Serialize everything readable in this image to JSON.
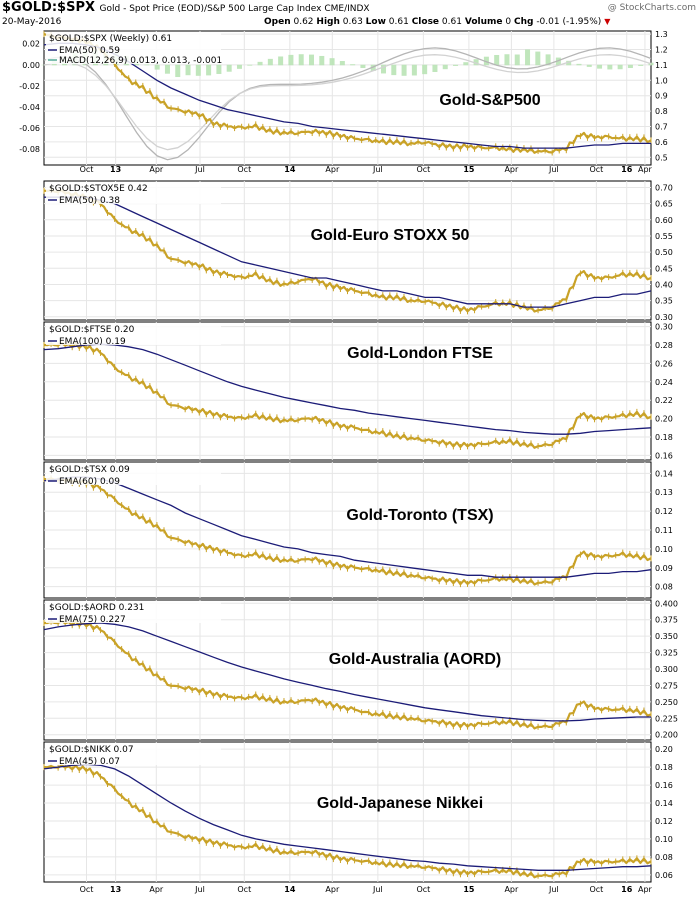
{
  "header": {
    "symbol": "$GOLD:$SPX",
    "description": "Gold - Spot Price (EOD)/S&P 500 Large Cap Index  CME/INDX",
    "date": "20-May-2016",
    "open_label": "Open",
    "open": "0.62",
    "high_label": "High",
    "high": "0.63",
    "low_label": "Low",
    "low": "0.61",
    "close_label": "Close",
    "close": "0.61",
    "volume_label": "Volume",
    "volume": "0",
    "chg_label": "Chg",
    "chg": "-0.01 (-1.95%)",
    "brand": "@ StockCharts.com"
  },
  "colors": {
    "price": "#c9a227",
    "ema": "#1c1c78",
    "macd_hist": "#b9e3b5",
    "macd_line": "#b5b5b5",
    "macd_signal": "#d2d2d2",
    "grid": "#e6e6e6"
  },
  "chart_data": {
    "type": "multi-panel-line",
    "x_tick_labels": [
      "Oct",
      "13",
      "Apr",
      "Jul",
      "Oct",
      "14",
      "Apr",
      "Jul",
      "Oct",
      "15",
      "Apr",
      "Jul",
      "Oct",
      "16",
      "Apr"
    ],
    "x_year_labels": [
      "13",
      "14",
      "15",
      "16"
    ],
    "panels": [
      {
        "name": "spx",
        "label": "$GOLD:$SPX (Weekly) 0.61",
        "ema_label": "EMA(50) 0.59",
        "macd_label": "MACD(12,26,9) 0.013, 0.013, -0.001",
        "title": "Gold-S&P500",
        "ylim": [
          0.45,
          1.32
        ],
        "right_ticks": [
          "1.3",
          "1.2",
          "1.1",
          "1.0",
          "0.9",
          "0.8",
          "0.7",
          "0.6",
          "0.5"
        ],
        "left_ticks": [
          "0.02",
          "0.00",
          "-0.02",
          "-0.04",
          "-0.06",
          "-0.08"
        ],
        "macd_ylim": [
          -0.095,
          0.032
        ],
        "price": [
          1.3,
          1.28,
          1.27,
          1.25,
          1.2,
          1.1,
          1.0,
          0.95,
          0.88,
          0.82,
          0.8,
          0.78,
          0.72,
          0.7,
          0.69,
          0.7,
          0.67,
          0.66,
          0.66,
          0.67,
          0.66,
          0.64,
          0.62,
          0.61,
          0.6,
          0.6,
          0.59,
          0.6,
          0.58,
          0.57,
          0.57,
          0.56,
          0.56,
          0.55,
          0.55,
          0.54,
          0.54,
          0.56,
          0.65,
          0.63,
          0.63,
          0.62,
          0.62,
          0.61
        ],
        "ema": [
          1.23,
          1.24,
          1.24,
          1.23,
          1.21,
          1.17,
          1.12,
          1.06,
          1.0,
          0.95,
          0.91,
          0.87,
          0.84,
          0.81,
          0.79,
          0.77,
          0.75,
          0.73,
          0.72,
          0.7,
          0.69,
          0.68,
          0.67,
          0.66,
          0.65,
          0.64,
          0.63,
          0.62,
          0.61,
          0.6,
          0.59,
          0.58,
          0.57,
          0.57,
          0.56,
          0.56,
          0.56,
          0.56,
          0.57,
          0.58,
          0.58,
          0.59,
          0.59,
          0.59
        ]
      },
      {
        "name": "stoxx",
        "label": "$GOLD:$STOX5E 0.42",
        "ema_label": "EMA(50) 0.38",
        "title": "Gold-Euro STOXX 50",
        "ylim": [
          0.29,
          0.72
        ],
        "right_ticks": [
          "0.70",
          "0.65",
          "0.60",
          "0.55",
          "0.50",
          "0.45",
          "0.40",
          "0.35",
          "0.30"
        ],
        "price": [
          0.69,
          0.69,
          0.68,
          0.67,
          0.65,
          0.6,
          0.57,
          0.55,
          0.52,
          0.48,
          0.47,
          0.46,
          0.44,
          0.43,
          0.42,
          0.43,
          0.41,
          0.4,
          0.41,
          0.42,
          0.4,
          0.39,
          0.38,
          0.37,
          0.36,
          0.36,
          0.35,
          0.35,
          0.34,
          0.33,
          0.32,
          0.33,
          0.34,
          0.34,
          0.33,
          0.32,
          0.33,
          0.36,
          0.44,
          0.42,
          0.42,
          0.43,
          0.43,
          0.42
        ],
        "ema": [
          0.67,
          0.67,
          0.67,
          0.67,
          0.66,
          0.65,
          0.63,
          0.61,
          0.59,
          0.57,
          0.55,
          0.53,
          0.51,
          0.49,
          0.47,
          0.46,
          0.45,
          0.44,
          0.43,
          0.42,
          0.42,
          0.41,
          0.4,
          0.39,
          0.38,
          0.38,
          0.37,
          0.36,
          0.36,
          0.35,
          0.34,
          0.34,
          0.34,
          0.34,
          0.33,
          0.33,
          0.33,
          0.34,
          0.35,
          0.36,
          0.36,
          0.37,
          0.37,
          0.38
        ]
      },
      {
        "name": "ftse",
        "label": "$GOLD:$FTSE 0.20",
        "ema_label": "EMA(100) 0.19",
        "title": "Gold-London FTSE",
        "ylim": [
          0.155,
          0.305
        ],
        "right_ticks": [
          "0.30",
          "0.28",
          "0.26",
          "0.24",
          "0.22",
          "0.20",
          "0.18",
          "0.16"
        ],
        "price": [
          0.28,
          0.281,
          0.28,
          0.278,
          0.272,
          0.255,
          0.245,
          0.238,
          0.228,
          0.215,
          0.212,
          0.209,
          0.205,
          0.202,
          0.2,
          0.203,
          0.2,
          0.198,
          0.199,
          0.201,
          0.197,
          0.192,
          0.19,
          0.186,
          0.184,
          0.181,
          0.179,
          0.177,
          0.175,
          0.172,
          0.171,
          0.172,
          0.174,
          0.175,
          0.172,
          0.17,
          0.173,
          0.18,
          0.205,
          0.2,
          0.201,
          0.203,
          0.205,
          0.202
        ],
        "ema": [
          0.275,
          0.276,
          0.278,
          0.28,
          0.281,
          0.28,
          0.278,
          0.275,
          0.27,
          0.264,
          0.258,
          0.252,
          0.246,
          0.24,
          0.235,
          0.231,
          0.227,
          0.223,
          0.22,
          0.217,
          0.214,
          0.211,
          0.209,
          0.206,
          0.204,
          0.202,
          0.2,
          0.198,
          0.196,
          0.194,
          0.192,
          0.19,
          0.188,
          0.187,
          0.185,
          0.184,
          0.183,
          0.183,
          0.184,
          0.186,
          0.187,
          0.188,
          0.189,
          0.19
        ]
      },
      {
        "name": "tsx",
        "label": "$GOLD:$TSX 0.09",
        "ema_label": "EMA(60) 0.09",
        "title": "Gold-Toronto (TSX)",
        "ylim": [
          0.074,
          0.146
        ],
        "right_ticks": [
          "0.14",
          "0.13",
          "0.12",
          "0.11",
          "0.10",
          "0.09",
          "0.08"
        ],
        "price": [
          0.137,
          0.137,
          0.136,
          0.135,
          0.132,
          0.126,
          0.12,
          0.116,
          0.112,
          0.106,
          0.104,
          0.102,
          0.1,
          0.098,
          0.096,
          0.097,
          0.095,
          0.094,
          0.094,
          0.095,
          0.093,
          0.091,
          0.09,
          0.089,
          0.088,
          0.087,
          0.086,
          0.085,
          0.084,
          0.083,
          0.082,
          0.083,
          0.084,
          0.084,
          0.083,
          0.082,
          0.083,
          0.086,
          0.098,
          0.096,
          0.096,
          0.097,
          0.096,
          0.095
        ],
        "ema": [
          0.136,
          0.137,
          0.138,
          0.138,
          0.137,
          0.135,
          0.132,
          0.129,
          0.126,
          0.123,
          0.119,
          0.116,
          0.113,
          0.11,
          0.107,
          0.105,
          0.103,
          0.101,
          0.1,
          0.098,
          0.097,
          0.096,
          0.094,
          0.093,
          0.092,
          0.091,
          0.09,
          0.089,
          0.088,
          0.087,
          0.086,
          0.086,
          0.085,
          0.085,
          0.085,
          0.085,
          0.085,
          0.085,
          0.086,
          0.087,
          0.087,
          0.088,
          0.088,
          0.089
        ]
      },
      {
        "name": "aord",
        "label": "$GOLD:$AORD 0.231",
        "ema_label": "EMA(75) 0.227",
        "title": "Gold-Australia (AORD)",
        "ylim": [
          0.192,
          0.405
        ],
        "right_ticks": [
          "0.400",
          "0.375",
          "0.350",
          "0.325",
          "0.300",
          "0.275",
          "0.250",
          "0.225",
          "0.200"
        ],
        "price": [
          0.37,
          0.372,
          0.37,
          0.368,
          0.36,
          0.34,
          0.32,
          0.305,
          0.29,
          0.275,
          0.272,
          0.268,
          0.262,
          0.258,
          0.255,
          0.258,
          0.253,
          0.25,
          0.251,
          0.254,
          0.248,
          0.242,
          0.238,
          0.232,
          0.23,
          0.227,
          0.225,
          0.222,
          0.22,
          0.216,
          0.214,
          0.216,
          0.218,
          0.219,
          0.215,
          0.212,
          0.214,
          0.222,
          0.25,
          0.24,
          0.238,
          0.238,
          0.236,
          0.231
        ],
        "ema": [
          0.36,
          0.364,
          0.367,
          0.369,
          0.37,
          0.368,
          0.364,
          0.358,
          0.35,
          0.342,
          0.334,
          0.326,
          0.318,
          0.31,
          0.303,
          0.297,
          0.291,
          0.285,
          0.28,
          0.275,
          0.27,
          0.266,
          0.261,
          0.257,
          0.253,
          0.249,
          0.245,
          0.241,
          0.238,
          0.235,
          0.232,
          0.229,
          0.227,
          0.225,
          0.223,
          0.222,
          0.221,
          0.221,
          0.222,
          0.224,
          0.225,
          0.226,
          0.227,
          0.227
        ]
      },
      {
        "name": "nikk",
        "label": "$GOLD:$NIKK 0.07",
        "ema_label": "EMA(45) 0.07",
        "title": "Gold-Japanese Nikkei",
        "ylim": [
          0.052,
          0.208
        ],
        "right_ticks": [
          "0.20",
          "0.18",
          "0.16",
          "0.14",
          "0.12",
          "0.10",
          "0.08",
          "0.06"
        ],
        "price": [
          0.18,
          0.181,
          0.18,
          0.178,
          0.17,
          0.155,
          0.14,
          0.13,
          0.118,
          0.108,
          0.103,
          0.1,
          0.096,
          0.093,
          0.09,
          0.092,
          0.088,
          0.085,
          0.085,
          0.086,
          0.082,
          0.078,
          0.076,
          0.074,
          0.072,
          0.071,
          0.07,
          0.069,
          0.067,
          0.064,
          0.062,
          0.063,
          0.064,
          0.064,
          0.061,
          0.059,
          0.06,
          0.063,
          0.076,
          0.074,
          0.074,
          0.075,
          0.076,
          0.075
        ],
        "ema": [
          0.178,
          0.18,
          0.182,
          0.183,
          0.182,
          0.178,
          0.17,
          0.16,
          0.15,
          0.14,
          0.131,
          0.123,
          0.116,
          0.11,
          0.104,
          0.1,
          0.097,
          0.094,
          0.092,
          0.09,
          0.088,
          0.086,
          0.084,
          0.082,
          0.08,
          0.078,
          0.076,
          0.075,
          0.073,
          0.072,
          0.07,
          0.069,
          0.068,
          0.067,
          0.066,
          0.065,
          0.065,
          0.065,
          0.066,
          0.067,
          0.068,
          0.069,
          0.069,
          0.07
        ]
      }
    ]
  }
}
